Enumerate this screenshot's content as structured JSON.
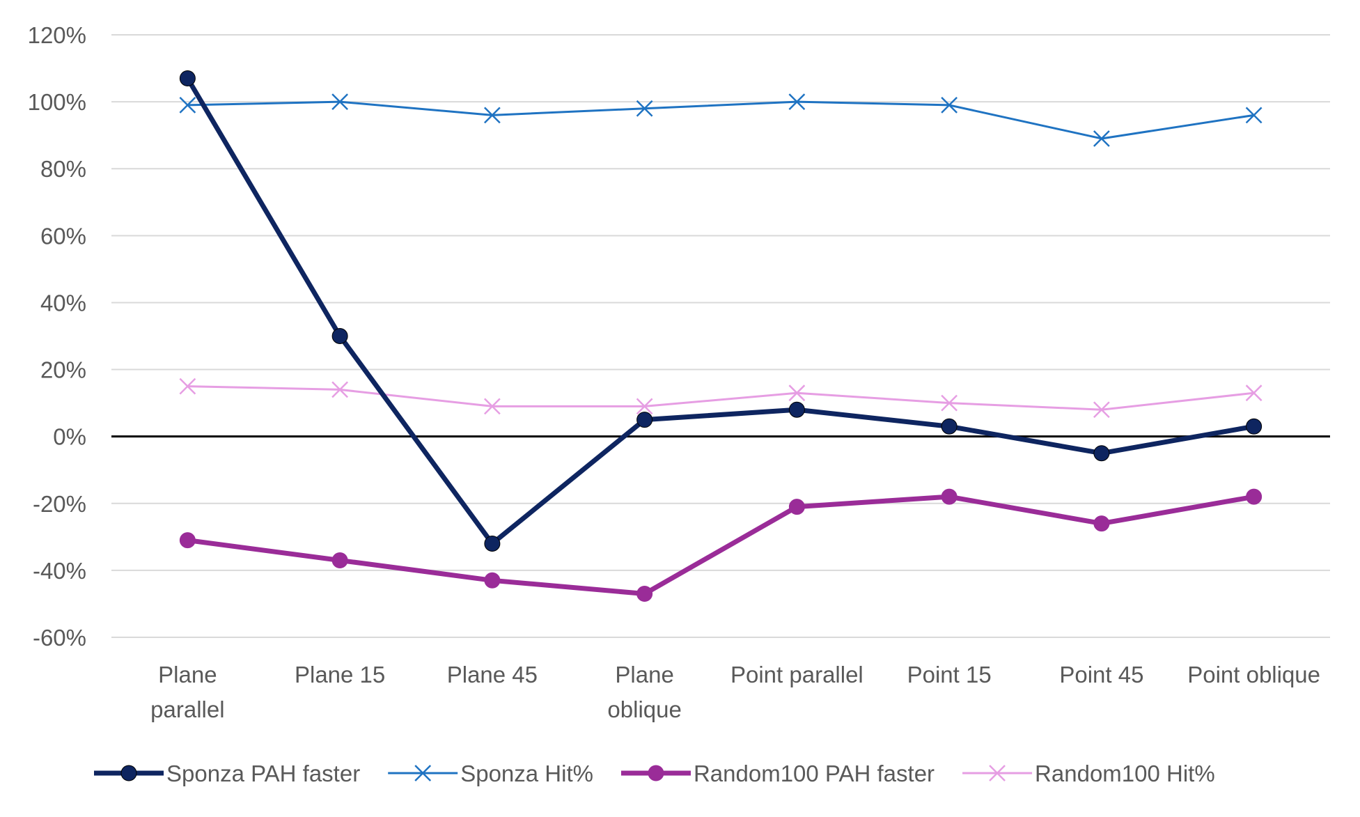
{
  "chart_data": {
    "type": "line",
    "categories": [
      [
        "Plane",
        "parallel"
      ],
      [
        "Plane 15"
      ],
      [
        "Plane 45"
      ],
      [
        "Plane",
        "oblique"
      ],
      [
        "Point parallel"
      ],
      [
        "Point 15"
      ],
      [
        "Point 45"
      ],
      [
        "Point oblique"
      ]
    ],
    "ylim": [
      -60,
      120
    ],
    "ytick_step": 20,
    "ytick_format": "percent",
    "grid": true,
    "zero_line": true,
    "legend_position": "bottom",
    "title": "",
    "xlabel": "",
    "ylabel": "",
    "series": [
      {
        "name": "Sponza PAH faster",
        "values": [
          107,
          30,
          -32,
          5,
          8,
          3,
          -5,
          3
        ],
        "color": "#0e2560",
        "marker": "circle",
        "line_width": "thick"
      },
      {
        "name": "Sponza Hit%",
        "values": [
          99,
          100,
          96,
          98,
          100,
          99,
          89,
          96
        ],
        "color": "#1f73c2",
        "marker": "x",
        "line_width": "thin"
      },
      {
        "name": "Random100 PAH faster",
        "values": [
          -31,
          -37,
          -43,
          -47,
          -21,
          -18,
          -26,
          -18
        ],
        "color": "#9a2c98",
        "marker": "circle",
        "line_width": "thick"
      },
      {
        "name": "Random100 Hit%",
        "values": [
          15,
          14,
          9,
          9,
          13,
          10,
          8,
          13
        ],
        "color": "#e69ee3",
        "marker": "x",
        "line_width": "thin"
      }
    ]
  }
}
